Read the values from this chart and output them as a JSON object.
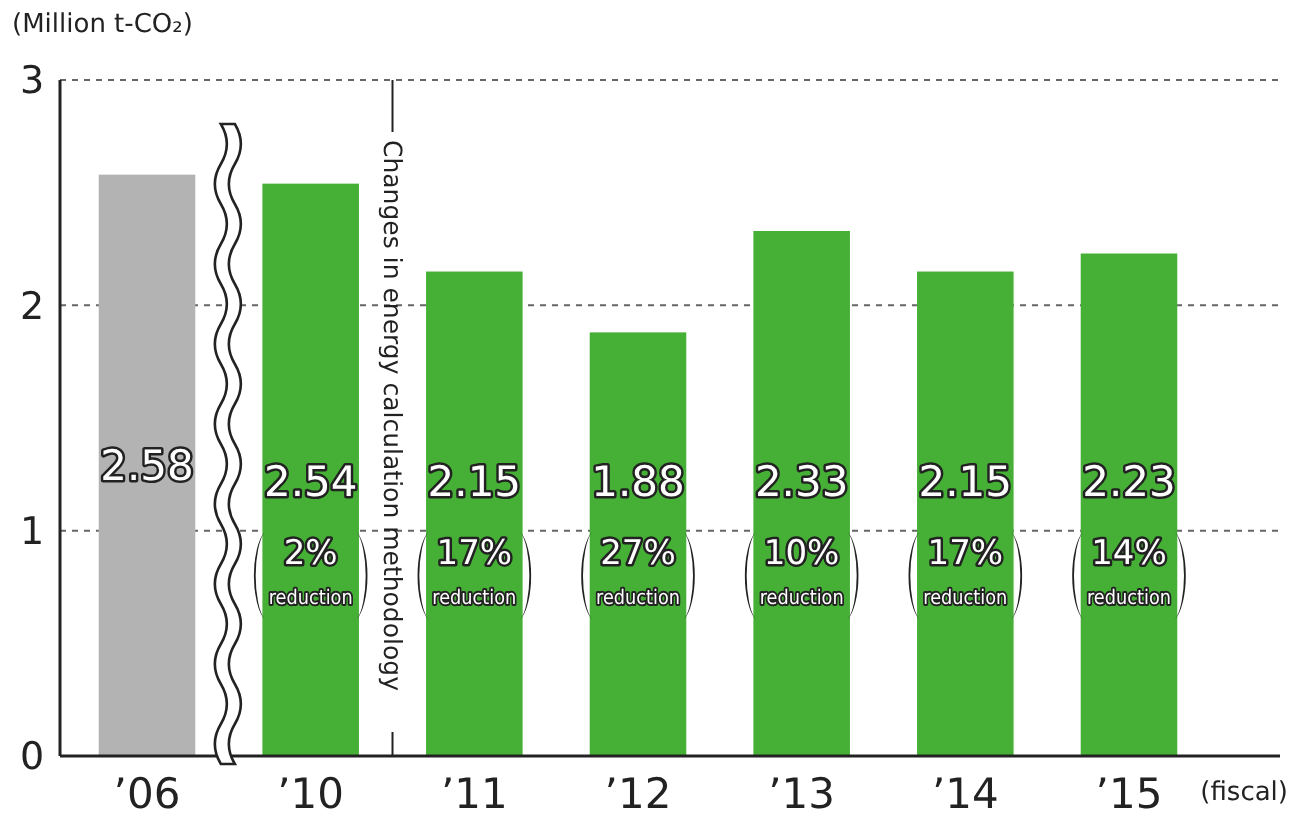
{
  "chart_data": {
    "type": "bar",
    "ylabel": "(Million t-CO₂)",
    "xlabel": "(fiscal)",
    "categories": [
      "’06",
      "’10",
      "’11",
      "’12",
      "’13",
      "’14",
      "’15"
    ],
    "values": [
      2.58,
      2.54,
      2.15,
      1.88,
      2.33,
      2.15,
      2.23
    ],
    "colors": [
      "#b3b3b3",
      "#45b035",
      "#45b035",
      "#45b035",
      "#45b035",
      "#45b035",
      "#45b035"
    ],
    "ylim": [
      0,
      3
    ],
    "yticks": [
      0,
      1,
      2,
      3
    ],
    "grid": "y",
    "data_labels": true,
    "annotations": [
      "Changes in energy calculation methodology",
      "2% reduction",
      "17% reduction",
      "27% reduction",
      "10% reduction",
      "17% reduction",
      "14% reduction"
    ]
  }
}
